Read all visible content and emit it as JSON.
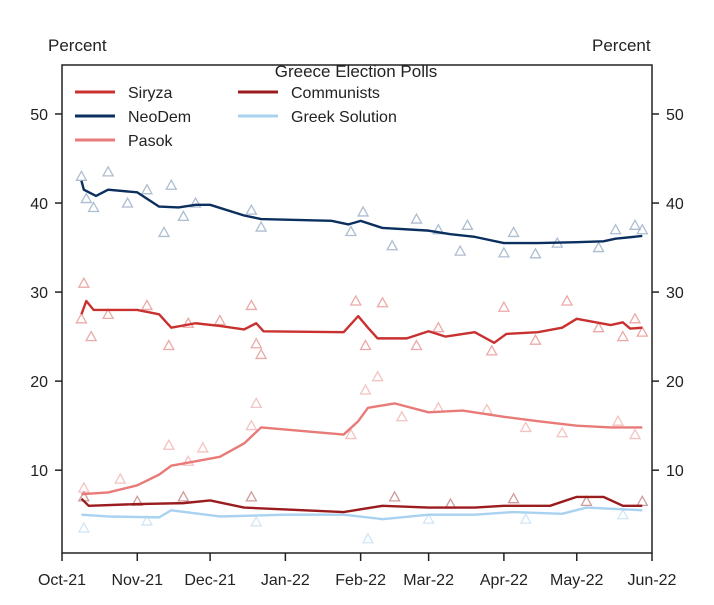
{
  "chart_data": {
    "type": "line",
    "title": "Greece Election Polls",
    "ylabel_left": "Percent",
    "ylabel_right": "Percent",
    "xlim": [
      "2021-10-01",
      "2022-06-01"
    ],
    "ylim": [
      0.7,
      55.5
    ],
    "x_ticks": [
      {
        "date": "2021-10-01",
        "label": "Oct-21"
      },
      {
        "date": "2021-11-01",
        "label": "Nov-21"
      },
      {
        "date": "2021-12-01",
        "label": "Dec-21"
      },
      {
        "date": "2022-01-01",
        "label": "Jan-22"
      },
      {
        "date": "2022-02-01",
        "label": "Feb-22"
      },
      {
        "date": "2022-03-01",
        "label": "Mar-22"
      },
      {
        "date": "2022-04-01",
        "label": "Apr-22"
      },
      {
        "date": "2022-05-01",
        "label": "May-22"
      },
      {
        "date": "2022-06-01",
        "label": "Jun-22"
      }
    ],
    "y_ticks": [
      10,
      20,
      30,
      40,
      50
    ],
    "grid": false,
    "legend_placement": "top-left",
    "marker": "triangle-open",
    "series": [
      {
        "name": "Siryza",
        "color": "#c8312f",
        "marker_color": "#e89a98",
        "line": [
          [
            "2021-10-09",
            27.5
          ],
          [
            "2021-10-11",
            29
          ],
          [
            "2021-10-14",
            28
          ],
          [
            "2021-11-01",
            28
          ],
          [
            "2021-11-10",
            27.5
          ],
          [
            "2021-11-15",
            26
          ],
          [
            "2021-11-25",
            26.5
          ],
          [
            "2021-12-05",
            26.2
          ],
          [
            "2021-12-15",
            25.8
          ],
          [
            "2021-12-20",
            26.5
          ],
          [
            "2021-12-23",
            25.6
          ],
          [
            "2022-01-25",
            25.5
          ],
          [
            "2022-01-31",
            27.3
          ],
          [
            "2022-02-04",
            26
          ],
          [
            "2022-02-08",
            24.8
          ],
          [
            "2022-02-20",
            24.8
          ],
          [
            "2022-03-01",
            25.6
          ],
          [
            "2022-03-08",
            25
          ],
          [
            "2022-03-20",
            25.5
          ],
          [
            "2022-03-28",
            24.3
          ],
          [
            "2022-04-02",
            25.3
          ],
          [
            "2022-04-15",
            25.5
          ],
          [
            "2022-04-25",
            26
          ],
          [
            "2022-05-01",
            27
          ],
          [
            "2022-05-15",
            26.3
          ],
          [
            "2022-05-20",
            26.6
          ],
          [
            "2022-05-23",
            25.9
          ],
          [
            "2022-05-28",
            26
          ]
        ],
        "polls": [
          [
            "2021-10-09",
            27
          ],
          [
            "2021-10-10",
            31
          ],
          [
            "2021-10-13",
            25
          ],
          [
            "2021-10-20",
            27.5
          ],
          [
            "2021-11-05",
            28.5
          ],
          [
            "2021-11-14",
            24
          ],
          [
            "2021-11-22",
            26.5
          ],
          [
            "2021-12-05",
            26.8
          ],
          [
            "2021-12-18",
            28.5
          ],
          [
            "2021-12-20",
            24.2
          ],
          [
            "2021-12-22",
            23
          ],
          [
            "2022-01-30",
            29
          ],
          [
            "2022-02-03",
            24
          ],
          [
            "2022-02-10",
            28.8
          ],
          [
            "2022-02-24",
            24
          ],
          [
            "2022-03-05",
            26
          ],
          [
            "2022-03-27",
            23.4
          ],
          [
            "2022-04-01",
            28.3
          ],
          [
            "2022-04-14",
            24.6
          ],
          [
            "2022-04-27",
            29
          ],
          [
            "2022-05-10",
            26
          ],
          [
            "2022-05-20",
            25
          ],
          [
            "2022-05-25",
            27
          ],
          [
            "2022-05-28",
            25.5
          ]
        ]
      },
      {
        "name": "NeoDem",
        "color": "#0b2f5e",
        "marker_color": "#9fb3c8",
        "line": [
          [
            "2021-10-09",
            42.5
          ],
          [
            "2021-10-10",
            41.5
          ],
          [
            "2021-10-15",
            40.8
          ],
          [
            "2021-10-20",
            41.5
          ],
          [
            "2021-11-01",
            41.2
          ],
          [
            "2021-11-10",
            39.6
          ],
          [
            "2021-11-18",
            39.5
          ],
          [
            "2021-11-25",
            39.8
          ],
          [
            "2021-12-01",
            39.8
          ],
          [
            "2021-12-15",
            38.6
          ],
          [
            "2021-12-22",
            38.2
          ],
          [
            "2022-01-20",
            38
          ],
          [
            "2022-01-27",
            37.6
          ],
          [
            "2022-02-01",
            38
          ],
          [
            "2022-02-10",
            37.2
          ],
          [
            "2022-03-01",
            36.9
          ],
          [
            "2022-03-10",
            36.5
          ],
          [
            "2022-03-20",
            36.2
          ],
          [
            "2022-04-01",
            35.5
          ],
          [
            "2022-04-15",
            35.5
          ],
          [
            "2022-05-01",
            35.6
          ],
          [
            "2022-05-12",
            35.7
          ],
          [
            "2022-05-17",
            36
          ],
          [
            "2022-05-28",
            36.3
          ]
        ],
        "polls": [
          [
            "2021-10-09",
            43
          ],
          [
            "2021-10-11",
            40.5
          ],
          [
            "2021-10-14",
            39.5
          ],
          [
            "2021-10-20",
            43.5
          ],
          [
            "2021-10-28",
            40
          ],
          [
            "2021-11-05",
            41.5
          ],
          [
            "2021-11-12",
            36.7
          ],
          [
            "2021-11-15",
            42
          ],
          [
            "2021-11-20",
            38.5
          ],
          [
            "2021-11-25",
            40
          ],
          [
            "2021-12-18",
            39.2
          ],
          [
            "2021-12-22",
            37.3
          ],
          [
            "2022-01-28",
            36.8
          ],
          [
            "2022-02-02",
            39
          ],
          [
            "2022-02-14",
            35.2
          ],
          [
            "2022-02-24",
            38.2
          ],
          [
            "2022-03-05",
            37
          ],
          [
            "2022-03-14",
            34.6
          ],
          [
            "2022-03-17",
            37.5
          ],
          [
            "2022-04-01",
            34.4
          ],
          [
            "2022-04-05",
            36.7
          ],
          [
            "2022-04-14",
            34.3
          ],
          [
            "2022-04-23",
            35.5
          ],
          [
            "2022-05-10",
            35
          ],
          [
            "2022-05-17",
            37
          ],
          [
            "2022-05-25",
            37.5
          ],
          [
            "2022-05-28",
            37
          ]
        ]
      },
      {
        "name": "Pasok",
        "color": "#e87a78",
        "marker_color": "#f2b8b6",
        "line": [
          [
            "2021-10-09",
            7.3
          ],
          [
            "2021-10-20",
            7.5
          ],
          [
            "2021-11-01",
            8.3
          ],
          [
            "2021-11-10",
            9.5
          ],
          [
            "2021-11-15",
            10.5
          ],
          [
            "2021-11-25",
            11
          ],
          [
            "2021-12-05",
            11.5
          ],
          [
            "2021-12-15",
            13
          ],
          [
            "2021-12-22",
            14.8
          ],
          [
            "2022-01-25",
            14
          ],
          [
            "2022-01-31",
            15.5
          ],
          [
            "2022-02-04",
            17
          ],
          [
            "2022-02-15",
            17.5
          ],
          [
            "2022-03-01",
            16.5
          ],
          [
            "2022-03-15",
            16.7
          ],
          [
            "2022-04-01",
            16
          ],
          [
            "2022-04-15",
            15.5
          ],
          [
            "2022-05-01",
            15
          ],
          [
            "2022-05-15",
            14.8
          ],
          [
            "2022-05-28",
            14.8
          ]
        ],
        "polls": [
          [
            "2021-10-10",
            8
          ],
          [
            "2021-10-25",
            9
          ],
          [
            "2021-11-14",
            12.8
          ],
          [
            "2021-11-22",
            11
          ],
          [
            "2021-11-28",
            12.5
          ],
          [
            "2021-12-18",
            15
          ],
          [
            "2021-12-20",
            17.5
          ],
          [
            "2022-01-28",
            14
          ],
          [
            "2022-02-03",
            19
          ],
          [
            "2022-02-08",
            20.5
          ],
          [
            "2022-02-18",
            16
          ],
          [
            "2022-03-05",
            17
          ],
          [
            "2022-03-25",
            16.8
          ],
          [
            "2022-04-10",
            14.8
          ],
          [
            "2022-04-25",
            14.2
          ],
          [
            "2022-05-18",
            15.5
          ],
          [
            "2022-05-25",
            14
          ]
        ]
      },
      {
        "name": "Communists",
        "color": "#9b1c1f",
        "marker_color": "#c78a8b",
        "line": [
          [
            "2021-10-09",
            6.8
          ],
          [
            "2021-10-12",
            6
          ],
          [
            "2021-11-01",
            6.2
          ],
          [
            "2021-11-20",
            6.3
          ],
          [
            "2021-12-01",
            6.6
          ],
          [
            "2021-12-15",
            5.8
          ],
          [
            "2022-01-25",
            5.3
          ],
          [
            "2022-02-10",
            6
          ],
          [
            "2022-03-01",
            5.8
          ],
          [
            "2022-03-20",
            5.8
          ],
          [
            "2022-04-01",
            6
          ],
          [
            "2022-04-20",
            6
          ],
          [
            "2022-05-01",
            7
          ],
          [
            "2022-05-12",
            7
          ],
          [
            "2022-05-20",
            6
          ],
          [
            "2022-05-28",
            6
          ]
        ],
        "polls": [
          [
            "2021-10-10",
            7
          ],
          [
            "2021-11-01",
            6.5
          ],
          [
            "2021-11-20",
            7
          ],
          [
            "2021-12-18",
            7
          ],
          [
            "2022-02-15",
            7
          ],
          [
            "2022-03-10",
            6.2
          ],
          [
            "2022-04-05",
            6.8
          ],
          [
            "2022-05-05",
            6.5
          ],
          [
            "2022-05-28",
            6.5
          ]
        ]
      },
      {
        "name": "Greek Solution",
        "color": "#a8d2f0",
        "marker_color": "#c9e2f5",
        "line": [
          [
            "2021-10-09",
            5
          ],
          [
            "2021-10-20",
            4.8
          ],
          [
            "2021-11-10",
            4.7
          ],
          [
            "2021-11-15",
            5.5
          ],
          [
            "2021-12-05",
            4.8
          ],
          [
            "2022-01-01",
            5
          ],
          [
            "2022-01-25",
            5
          ],
          [
            "2022-02-10",
            4.5
          ],
          [
            "2022-03-01",
            5
          ],
          [
            "2022-03-20",
            5
          ],
          [
            "2022-04-05",
            5.3
          ],
          [
            "2022-04-25",
            5.1
          ],
          [
            "2022-05-05",
            5.8
          ],
          [
            "2022-05-28",
            5.5
          ]
        ],
        "polls": [
          [
            "2021-10-10",
            3.5
          ],
          [
            "2021-11-05",
            4.3
          ],
          [
            "2021-12-20",
            4.2
          ],
          [
            "2022-02-04",
            2.3
          ],
          [
            "2022-03-01",
            4.5
          ],
          [
            "2022-04-10",
            4.5
          ],
          [
            "2022-05-20",
            5
          ]
        ]
      }
    ]
  }
}
